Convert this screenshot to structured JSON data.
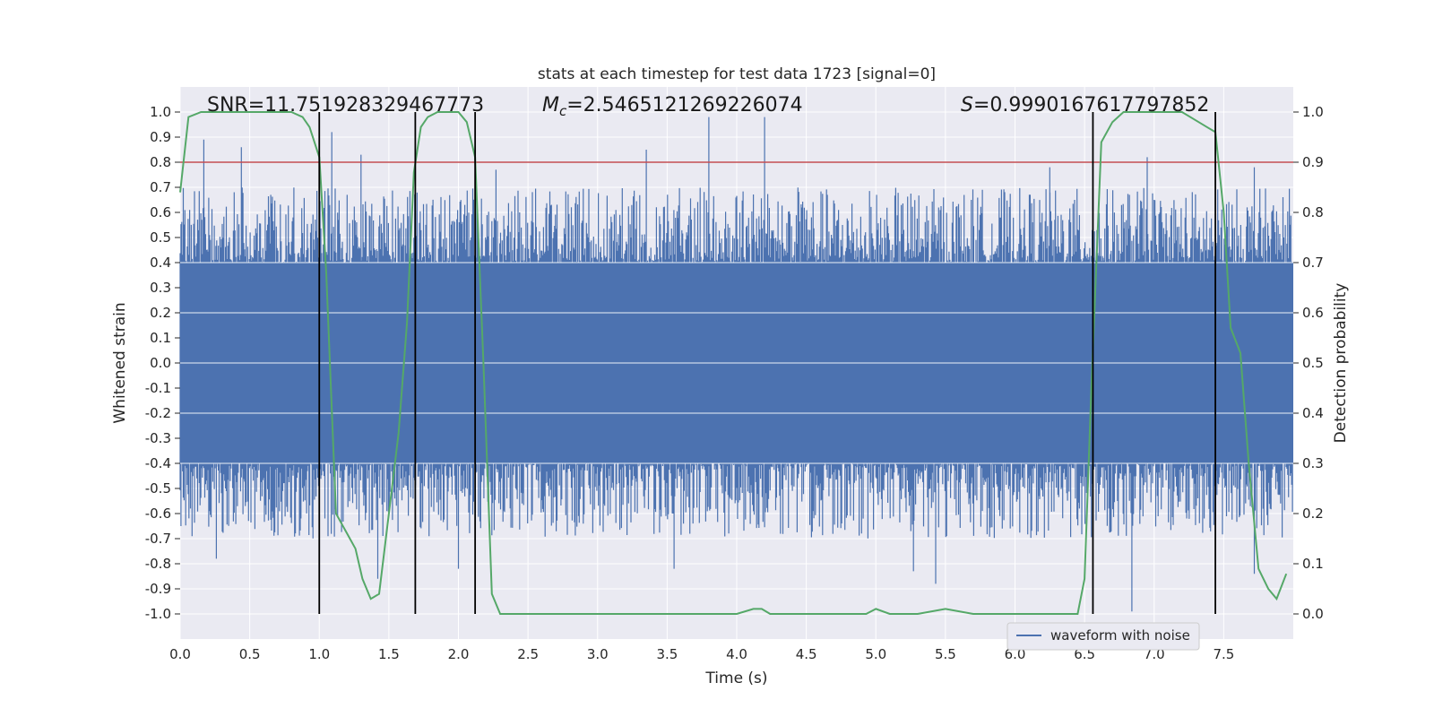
{
  "chart_data": {
    "type": "line",
    "title": "stats at each timestep for test data 1723 [signal=0]",
    "xlabel": "Time (s)",
    "ylabel_left": "Whitened strain",
    "ylabel_right": "Detection probability",
    "xlim": [
      0.0,
      8.0
    ],
    "ylim_left": [
      -1.1,
      1.1
    ],
    "ylim_right": [
      -0.05,
      1.05
    ],
    "xticks": [
      "0.0",
      "0.5",
      "1.0",
      "1.5",
      "2.0",
      "2.5",
      "3.0",
      "3.5",
      "4.0",
      "4.5",
      "5.0",
      "5.5",
      "6.0",
      "6.5",
      "7.0",
      "7.5"
    ],
    "yticks_left": [
      "1.0",
      "0.9",
      "0.8",
      "0.7",
      "0.6",
      "0.5",
      "0.4",
      "0.3",
      "0.2",
      "0.1",
      "0.0",
      "-0.1",
      "-0.2",
      "-0.3",
      "-0.4",
      "-0.5",
      "-0.6",
      "-0.7",
      "-0.8",
      "-0.9",
      "-1.0"
    ],
    "yticks_right": [
      "1.0",
      "0.9",
      "0.8",
      "0.7",
      "0.6",
      "0.5",
      "0.4",
      "0.3",
      "0.2",
      "0.1",
      "0.0"
    ],
    "grid": true,
    "legend": {
      "position": "bottom-right",
      "entries": [
        "waveform with noise"
      ]
    },
    "annotations": {
      "snr": "SNR=11.751928329467773",
      "mc_symbol": "M",
      "mc_sub": "c",
      "mc_value": "=2.5465121269226074",
      "s_symbol": "S",
      "s_value": "=0.9990167617797852"
    },
    "threshold": {
      "value": 0.9,
      "axis": "right",
      "color": "#c44e52"
    },
    "vertical_lines": [
      1.0,
      1.69,
      2.12,
      6.56,
      7.44
    ],
    "waveform": {
      "name": "waveform with noise",
      "color": "#4c72b0",
      "band_center": 0.0,
      "band_halfwidth": 0.4,
      "peaks_upper": [
        [
          0.17,
          0.89
        ],
        [
          0.44,
          0.86
        ],
        [
          1.09,
          0.92
        ],
        [
          1.3,
          0.83
        ],
        [
          2.27,
          0.77
        ],
        [
          3.35,
          0.85
        ],
        [
          3.8,
          0.98
        ],
        [
          4.2,
          0.98
        ],
        [
          6.25,
          0.78
        ],
        [
          6.95,
          0.82
        ],
        [
          7.72,
          0.78
        ]
      ],
      "peaks_lower": [
        [
          0.26,
          -0.78
        ],
        [
          1.42,
          -0.86
        ],
        [
          2.0,
          -0.82
        ],
        [
          3.55,
          -0.82
        ],
        [
          5.27,
          -0.83
        ],
        [
          5.43,
          -0.88
        ],
        [
          6.84,
          -0.99
        ],
        [
          7.72,
          -0.84
        ]
      ]
    },
    "probability": {
      "name": "detection probability",
      "color": "#55a868",
      "x": [
        0.0,
        0.06,
        0.15,
        0.3,
        0.55,
        0.8,
        0.88,
        0.93,
        1.0,
        1.05,
        1.12,
        1.2,
        1.26,
        1.31,
        1.37,
        1.43,
        1.5,
        1.57,
        1.63,
        1.68,
        1.73,
        1.78,
        1.85,
        2.0,
        2.06,
        2.12,
        2.18,
        2.24,
        2.3,
        2.4,
        2.6,
        2.8,
        3.0,
        3.2,
        3.4,
        3.6,
        3.8,
        4.0,
        4.12,
        4.18,
        4.24,
        4.3,
        4.5,
        4.7,
        4.93,
        5.0,
        5.1,
        5.3,
        5.5,
        5.7,
        5.9,
        6.1,
        6.3,
        6.45,
        6.5,
        6.55,
        6.62,
        6.7,
        6.78,
        6.9,
        7.0,
        7.2,
        7.32,
        7.38,
        7.44,
        7.5,
        7.55,
        7.62,
        7.68,
        7.75,
        7.82,
        7.88,
        7.95
      ],
      "y": [
        0.84,
        0.99,
        1.0,
        1.0,
        1.0,
        1.0,
        0.99,
        0.97,
        0.91,
        0.68,
        0.2,
        0.16,
        0.13,
        0.07,
        0.03,
        0.04,
        0.2,
        0.36,
        0.58,
        0.88,
        0.97,
        0.99,
        1.0,
        1.0,
        0.98,
        0.91,
        0.5,
        0.04,
        0.0,
        0.0,
        0.0,
        0.0,
        0.0,
        0.0,
        0.0,
        0.0,
        0.0,
        0.0,
        0.01,
        0.01,
        0.0,
        0.0,
        0.0,
        0.0,
        0.0,
        0.01,
        0.0,
        0.0,
        0.01,
        0.0,
        0.0,
        0.0,
        0.0,
        0.0,
        0.07,
        0.46,
        0.94,
        0.98,
        1.0,
        1.0,
        1.0,
        1.0,
        0.98,
        0.97,
        0.96,
        0.8,
        0.57,
        0.52,
        0.3,
        0.09,
        0.05,
        0.03,
        0.08
      ]
    }
  }
}
